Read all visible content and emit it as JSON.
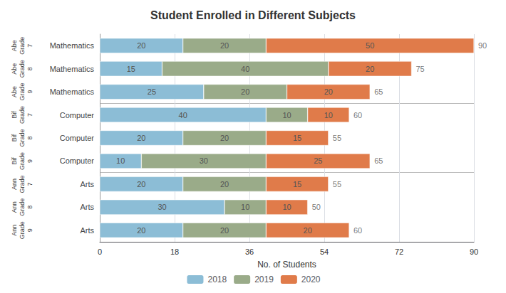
{
  "chart_data": {
    "type": "bar",
    "orientation": "horizontal",
    "stacked": true,
    "data_labels": true,
    "title": "Student Enrolled in Different Subjects",
    "xlabel": "No. of Students",
    "categories": [
      "Abe\nGrade\n7",
      "Abe\nGrade\n8",
      "Abe\nGrade\n9",
      "Bif\nGrade\n7",
      "Bif\nGrade\n8",
      "Bif\nGrade\n9",
      "Ann\nGrade\n7",
      "Ann\nGrade\n8",
      "Ann\nGrade\n9"
    ],
    "subjects": [
      "Mathematics",
      "Mathematics",
      "Mathematics",
      "Computer",
      "Computer",
      "Computer",
      "Arts",
      "Arts",
      "Arts"
    ],
    "series": [
      {
        "name": "2018",
        "color": "#8cbdd6",
        "values": [
          20,
          15,
          25,
          40,
          20,
          10,
          20,
          30,
          20
        ]
      },
      {
        "name": "2019",
        "color": "#9aab89",
        "values": [
          20,
          40,
          20,
          10,
          20,
          30,
          20,
          10,
          20
        ]
      },
      {
        "name": "2020",
        "color": "#e07b4a",
        "values": [
          50,
          20,
          20,
          10,
          15,
          25,
          15,
          10,
          20
        ]
      }
    ],
    "totals": [
      90,
      75,
      65,
      60,
      55,
      65,
      55,
      50,
      60
    ],
    "xlim": [
      0,
      90
    ],
    "xticks": [
      0,
      18,
      36,
      54,
      72,
      90
    ],
    "grid": true,
    "legend": "bottom"
  }
}
